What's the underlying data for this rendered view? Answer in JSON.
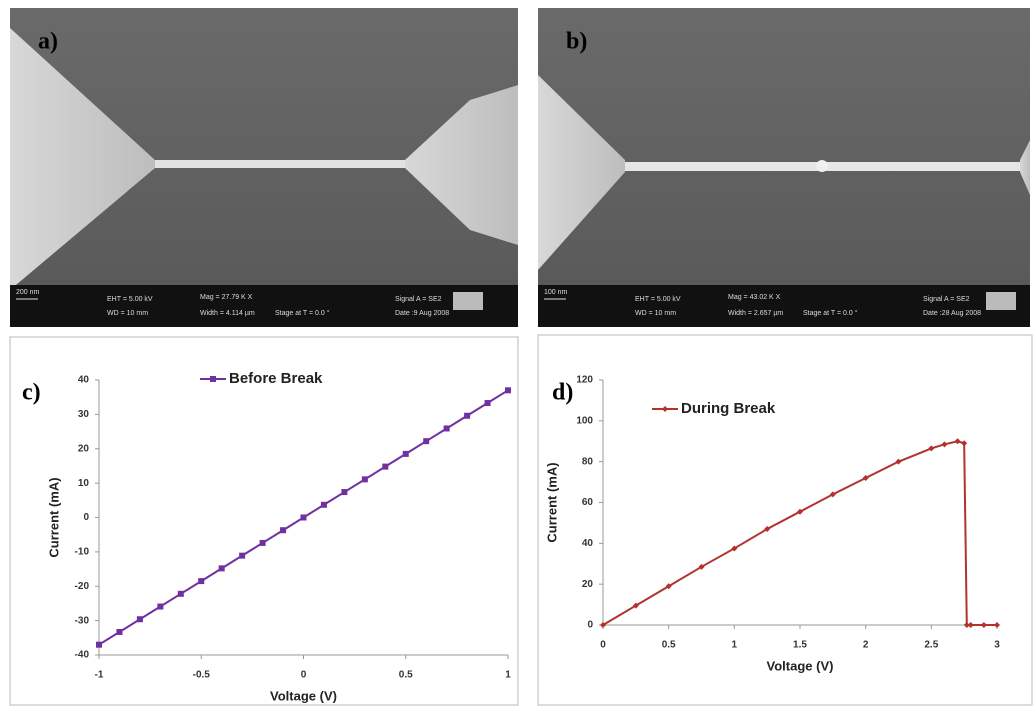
{
  "images": [
    {
      "label": "a)",
      "scale_bar": "200 nm",
      "info": [
        "EHT = 5.00 kV",
        "WD = 10 mm",
        "Mag = 27.79 K X",
        "Width = 4.114 µm",
        "Stage at T = 0.0 °",
        "Signal A = SE2",
        "Date :9 Aug 2008"
      ]
    },
    {
      "label": "b)",
      "scale_bar": "100 nm",
      "info": [
        "EHT = 5.00 kV",
        "WD = 10 mm",
        "Mag = 43.02 K X",
        "Width = 2.657 µm",
        "Stage at T = 0.0 °",
        "Signal A = SE2",
        "Date :28 Aug 2008"
      ]
    }
  ],
  "chart_data": [
    {
      "type": "line",
      "label": "c)",
      "xlabel": "Voltage (V)",
      "ylabel": "Current (mA)",
      "marker": "square",
      "x": [
        -1,
        -0.9,
        -0.8,
        -0.7,
        -0.6,
        -0.5,
        -0.4,
        -0.3,
        -0.2,
        -0.1,
        0,
        0.1,
        0.2,
        0.3,
        0.4,
        0.5,
        0.6,
        0.7,
        0.8,
        0.9,
        1
      ],
      "series": [
        {
          "name": "Before Break",
          "color": "#7030a0",
          "values": [
            -37,
            -33.3,
            -29.6,
            -25.9,
            -22.2,
            -18.5,
            -14.8,
            -11.1,
            -7.4,
            -3.7,
            0,
            3.7,
            7.4,
            11.1,
            14.8,
            18.5,
            22.2,
            25.9,
            29.6,
            33.3,
            37
          ]
        }
      ],
      "xlim": [
        -1,
        1
      ],
      "xticks": [
        -1,
        -0.5,
        0,
        0.5,
        1
      ],
      "ylim": [
        -40,
        40
      ],
      "yticks": [
        -40,
        -30,
        -20,
        -10,
        0,
        10,
        20,
        30,
        40
      ],
      "legend": "top"
    },
    {
      "type": "line",
      "label": "d)",
      "xlabel": "Voltage (V)",
      "ylabel": "Current (mA)",
      "marker": "diamond",
      "x": [
        0,
        0.25,
        0.5,
        0.75,
        1,
        1.25,
        1.5,
        1.75,
        2,
        2.25,
        2.5,
        2.6,
        2.7,
        2.75,
        2.77,
        2.8,
        2.9,
        3
      ],
      "series": [
        {
          "name": "During Break",
          "color": "#b2322c",
          "values": [
            0,
            9.5,
            19,
            28.5,
            37.5,
            47,
            55.5,
            64,
            72,
            80,
            86.5,
            88.5,
            90,
            89,
            0,
            0,
            0,
            0
          ]
        }
      ],
      "xlim": [
        0,
        3
      ],
      "xticks": [
        0,
        0.5,
        1,
        1.5,
        2,
        2.5,
        3
      ],
      "ylim": [
        0,
        120
      ],
      "yticks": [
        0,
        20,
        40,
        60,
        80,
        100,
        120
      ],
      "legend": "top-left"
    }
  ]
}
